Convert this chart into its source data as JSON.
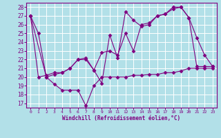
{
  "xlabel": "Windchill (Refroidissement éolien,°C)",
  "xlim": [
    -0.5,
    23.5
  ],
  "ylim": [
    16.5,
    28.5
  ],
  "yticks": [
    17,
    18,
    19,
    20,
    21,
    22,
    23,
    24,
    25,
    26,
    27,
    28
  ],
  "xticks": [
    0,
    1,
    2,
    3,
    4,
    5,
    6,
    7,
    8,
    9,
    10,
    11,
    12,
    13,
    14,
    15,
    16,
    17,
    18,
    19,
    20,
    21,
    22,
    23
  ],
  "line_color": "#800080",
  "bg_color": "#b2e0e8",
  "grid_color": "#ffffff",
  "line1_x": [
    0,
    1,
    2,
    3,
    4,
    5,
    6,
    7,
    8,
    9,
    10,
    11,
    12,
    13,
    14,
    15,
    16,
    17,
    18,
    19,
    20,
    21,
    22,
    23
  ],
  "line1_y": [
    27.0,
    25.0,
    20.0,
    19.2,
    18.5,
    18.5,
    18.5,
    16.7,
    19.0,
    20.0,
    20.0,
    20.0,
    20.0,
    20.2,
    20.2,
    20.3,
    20.3,
    20.5,
    20.5,
    20.7,
    21.0,
    21.0,
    21.0,
    21.0
  ],
  "line2_x": [
    0,
    2,
    3,
    4,
    5,
    6,
    7,
    8,
    9,
    10,
    11,
    12,
    13,
    14,
    15,
    16,
    17,
    18,
    19,
    20,
    21,
    22,
    23
  ],
  "line2_y": [
    27.0,
    20.0,
    20.3,
    20.5,
    21.0,
    22.0,
    22.2,
    20.8,
    22.8,
    23.0,
    22.5,
    25.0,
    23.0,
    26.0,
    26.2,
    27.0,
    27.2,
    27.8,
    28.0,
    26.8,
    21.2,
    21.2,
    21.2
  ],
  "line3_x": [
    0,
    1,
    2,
    3,
    4,
    5,
    6,
    7,
    8,
    9,
    10,
    11,
    12,
    13,
    14,
    15,
    16,
    17,
    18,
    19,
    20,
    21,
    22,
    23
  ],
  "line3_y": [
    27.0,
    20.0,
    20.2,
    20.5,
    20.5,
    21.0,
    22.0,
    22.0,
    20.8,
    19.3,
    24.8,
    22.2,
    27.5,
    26.5,
    25.8,
    26.0,
    27.0,
    27.2,
    28.0,
    28.0,
    26.8,
    24.5,
    22.5,
    21.2
  ],
  "marker": "D",
  "marker_size": 2.5,
  "line_width": 0.8
}
